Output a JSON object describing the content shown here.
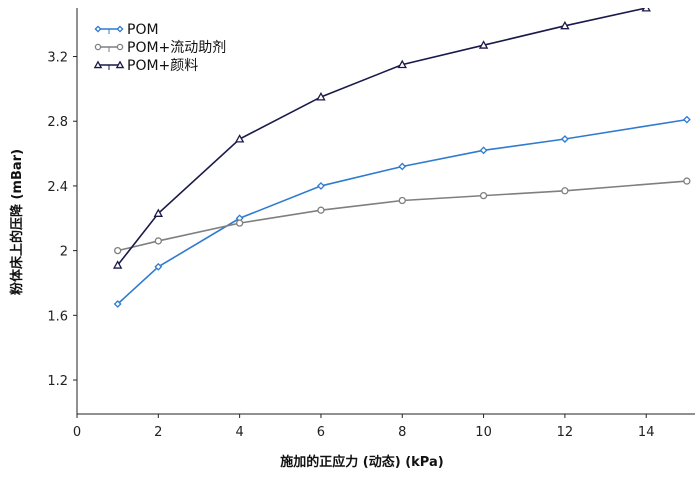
{
  "chart_data": {
    "type": "line",
    "title": "",
    "xlabel": "施加的正应力 (动态) (kPa)",
    "ylabel": "粉体床上的压降 (mBar)",
    "xlim": [
      0,
      15.2
    ],
    "ylim": [
      0.99,
      3.5
    ],
    "x_ticks": [
      0,
      2,
      4,
      6,
      8,
      10,
      12,
      14
    ],
    "y_ticks": [
      1.2,
      1.6,
      2,
      2.4,
      2.8,
      3.2
    ],
    "x_tick_labels": [
      "0",
      "2",
      "4",
      "6",
      "8",
      "10",
      "12",
      "14"
    ],
    "y_tick_labels": [
      "1.2",
      "1.6",
      "2",
      "2.4",
      "2.8",
      "3.2"
    ],
    "grid": false,
    "legend_position": "top-left",
    "series": [
      {
        "name": "POM",
        "color": "#2f7bd0",
        "marker": "diamond",
        "x": [
          1,
          2,
          4,
          6,
          8,
          10,
          12,
          15
        ],
        "y": [
          1.67,
          1.9,
          2.2,
          2.4,
          2.52,
          2.62,
          2.69,
          2.81
        ]
      },
      {
        "name": "POM+流动助剂",
        "color": "#7f7f7f",
        "marker": "circle",
        "x": [
          1,
          2,
          4,
          6,
          8,
          10,
          12,
          15
        ],
        "y": [
          2.0,
          2.06,
          2.17,
          2.25,
          2.31,
          2.34,
          2.37,
          2.43
        ]
      },
      {
        "name": "POM+颜料",
        "color": "#1a1a4a",
        "marker": "triangle",
        "x": [
          1,
          2,
          4,
          6,
          8,
          10,
          12,
          14
        ],
        "y": [
          1.91,
          2.23,
          2.69,
          2.95,
          3.15,
          3.27,
          3.39,
          3.5
        ]
      }
    ]
  }
}
